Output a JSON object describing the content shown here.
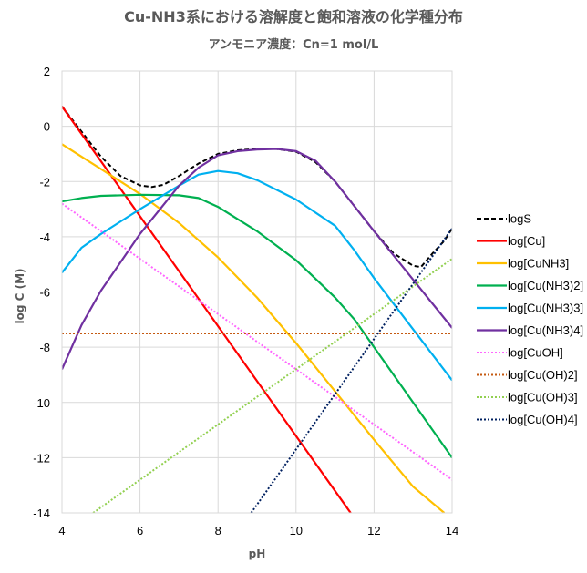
{
  "chart_data": {
    "type": "line",
    "title": "Cu-NH3系における溶解度と飽和溶液の化学種分布",
    "subtitle": "アンモニア濃度：Cn=1 mol/L",
    "xlabel": "pH",
    "ylabel": "log C (M)",
    "xlim": [
      4,
      14
    ],
    "ylim": [
      -14,
      2
    ],
    "xticks": [
      "4",
      "6",
      "8",
      "10",
      "12",
      "14"
    ],
    "yticks": [
      "2",
      "0",
      "-2",
      "-4",
      "-6",
      "-8",
      "-10",
      "-12",
      "-14"
    ],
    "grid": true,
    "legend_position": "right",
    "series": [
      {
        "name": "logS",
        "color": "#000000",
        "dash": "dash",
        "x": [
          4,
          5,
          5.5,
          6,
          6.3,
          6.6,
          7,
          7.5,
          8,
          8.5,
          9,
          9.5,
          10,
          10.5,
          11,
          11.5,
          12,
          12.5,
          13,
          13.2,
          13.5,
          13.8,
          14
        ],
        "y": [
          0.72,
          -1.1,
          -1.8,
          -2.14,
          -2.2,
          -2.12,
          -1.8,
          -1.35,
          -1.0,
          -0.87,
          -0.82,
          -0.82,
          -0.92,
          -1.3,
          -2.0,
          -2.9,
          -3.8,
          -4.6,
          -5.05,
          -5.1,
          -4.6,
          -4.15,
          -3.7
        ]
      },
      {
        "name": "log[Cu]",
        "color": "#ff0000",
        "dash": "solid",
        "x": [
          4,
          11.4
        ],
        "y": [
          0.72,
          -14.0
        ]
      },
      {
        "name": "log[CuNH3]",
        "color": "#ffc000",
        "dash": "solid",
        "x": [
          4,
          5,
          6,
          7,
          8,
          9,
          10,
          11,
          12,
          13,
          13.8
        ],
        "y": [
          -0.65,
          -1.55,
          -2.45,
          -3.5,
          -4.75,
          -6.2,
          -7.85,
          -9.6,
          -11.35,
          -13.05,
          -14.0
        ]
      },
      {
        "name": "log[Cu(NH3)2]",
        "color": "#00b050",
        "dash": "solid",
        "x": [
          4,
          4.5,
          5,
          6,
          7,
          7.5,
          8,
          9,
          10,
          11,
          11.5,
          12,
          13,
          14
        ],
        "y": [
          -2.72,
          -2.6,
          -2.52,
          -2.48,
          -2.5,
          -2.6,
          -2.92,
          -3.8,
          -4.85,
          -6.2,
          -7.0,
          -8.0,
          -10.0,
          -12.0
        ]
      },
      {
        "name": "log[Cu(NH3)3]",
        "color": "#00b0f0",
        "dash": "solid",
        "x": [
          4,
          4.5,
          5,
          6,
          7,
          7.5,
          8,
          8.5,
          9,
          10,
          11,
          11.5,
          12,
          13,
          14
        ],
        "y": [
          -5.3,
          -4.4,
          -3.9,
          -3.0,
          -2.15,
          -1.75,
          -1.62,
          -1.7,
          -1.95,
          -2.65,
          -3.6,
          -4.5,
          -5.5,
          -7.35,
          -9.2
        ]
      },
      {
        "name": "log[Cu(NH3)4]",
        "color": "#7030a0",
        "dash": "solid",
        "x": [
          4,
          4.5,
          5,
          6,
          7,
          7.5,
          8,
          8.5,
          9,
          9.5,
          10,
          10.5,
          11,
          12,
          13,
          14
        ],
        "y": [
          -8.8,
          -7.2,
          -5.95,
          -3.9,
          -2.15,
          -1.5,
          -1.05,
          -0.9,
          -0.84,
          -0.82,
          -0.9,
          -1.25,
          -2.0,
          -3.8,
          -5.55,
          -7.3
        ]
      },
      {
        "name": "log[CuOH]",
        "color": "#ff66ff",
        "dash": "dot",
        "x": [
          4,
          14
        ],
        "y": [
          -2.8,
          -12.8
        ]
      },
      {
        "name": "log[Cu(OH)2]",
        "color": "#c55a11",
        "dash": "dot",
        "x": [
          4,
          14
        ],
        "y": [
          -7.5,
          -7.5
        ]
      },
      {
        "name": "log[Cu(OH)3]",
        "color": "#92d050",
        "dash": "dot",
        "x": [
          4.8,
          14
        ],
        "y": [
          -14.0,
          -4.8
        ]
      },
      {
        "name": "log[Cu(OH)4]",
        "color": "#002060",
        "dash": "dot",
        "x": [
          8.85,
          14
        ],
        "y": [
          -14.0,
          -3.7
        ]
      }
    ]
  }
}
